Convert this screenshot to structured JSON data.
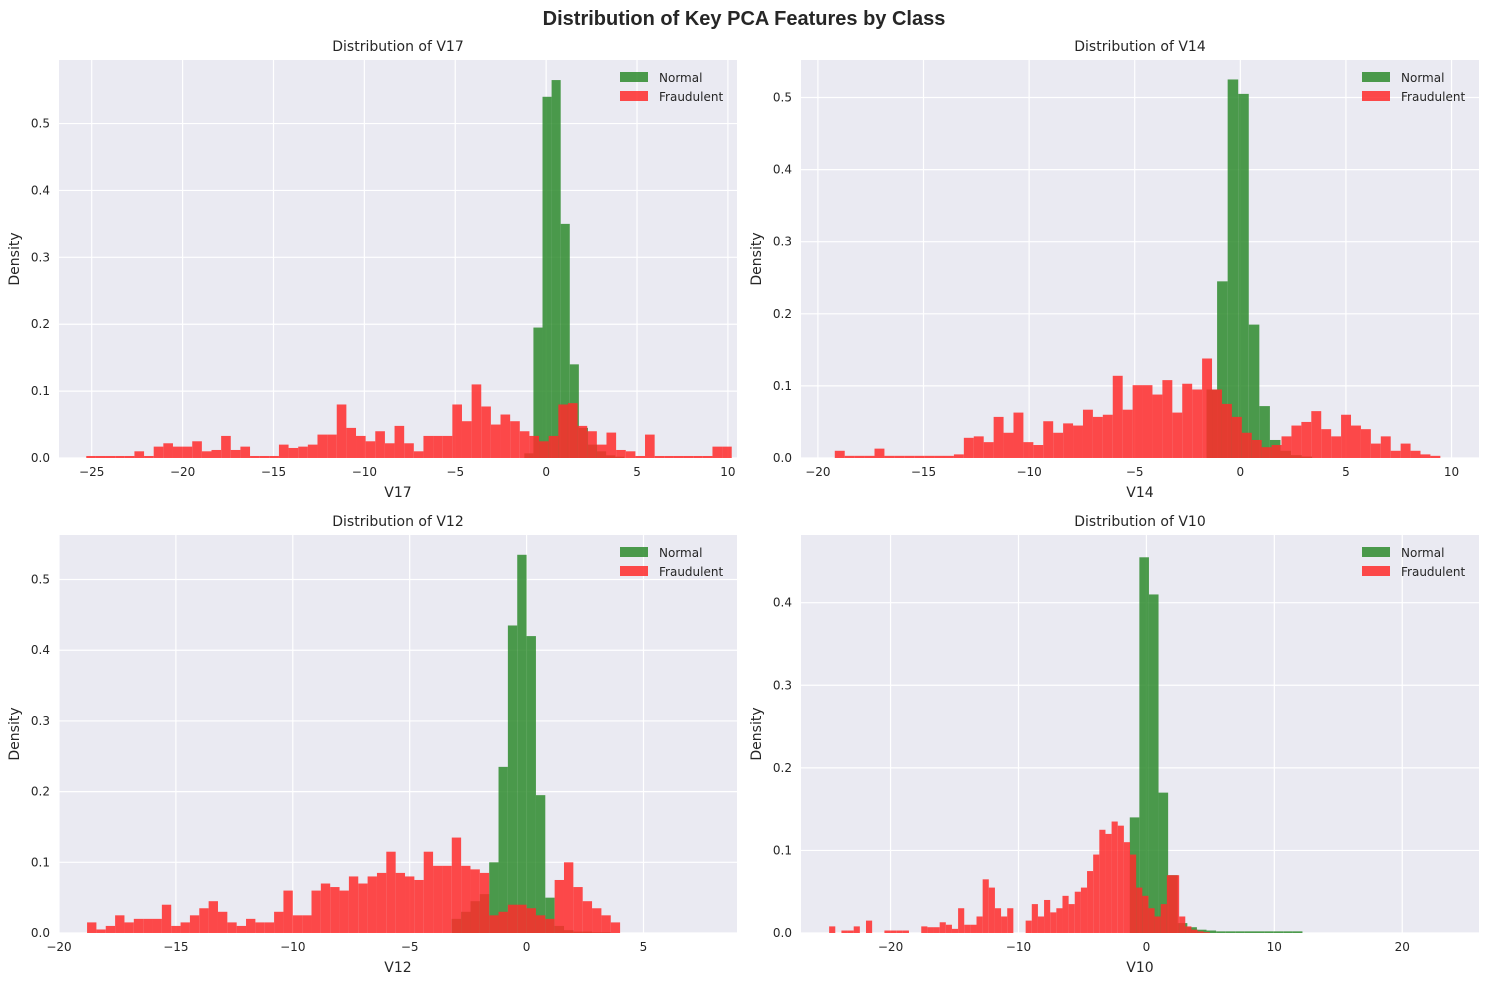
{
  "figure": {
    "title": "Distribution of Key PCA Features by Class"
  },
  "colors": {
    "normal": "#2e8b2e",
    "fraud": "#ff2b2b",
    "panel_bg": "#eaeaf2",
    "grid": "#ffffff"
  },
  "legend_position": "upper right",
  "chart_data": [
    {
      "type": "histogram",
      "title": "Distribution of V17",
      "xlabel": "V17",
      "ylabel": "Density",
      "xlim": [
        -26.8,
        10.5
      ],
      "ylim": [
        0,
        0.595
      ],
      "xticks": [
        -25,
        -20,
        -15,
        -10,
        -5,
        0,
        5,
        10
      ],
      "yticks": [
        0.0,
        0.1,
        0.2,
        0.3,
        0.4,
        0.5
      ],
      "grid": true,
      "series": [
        {
          "name": "Normal",
          "bin_start": -1.2,
          "bin_width": 0.5,
          "values": [
            0.007,
            0.195,
            0.54,
            0.565,
            0.35,
            0.14,
            0.045,
            0.02,
            0.01,
            0.004,
            0.002
          ]
        },
        {
          "name": "Fraudulent",
          "bin_start": -25.3,
          "bin_width": 0.53,
          "values": [
            0.003,
            0.003,
            0.003,
            0.003,
            0.003,
            0.01,
            0.003,
            0.017,
            0.022,
            0.017,
            0.017,
            0.025,
            0.01,
            0.012,
            0.033,
            0.012,
            0.017,
            0.003,
            0.003,
            0.003,
            0.02,
            0.015,
            0.017,
            0.02,
            0.035,
            0.035,
            0.08,
            0.045,
            0.033,
            0.025,
            0.04,
            0.022,
            0.048,
            0.022,
            0.01,
            0.033,
            0.033,
            0.033,
            0.08,
            0.055,
            0.11,
            0.077,
            0.05,
            0.065,
            0.055,
            0.04,
            0.033,
            0.025,
            0.033,
            0.08,
            0.082,
            0.048,
            0.04,
            0.02,
            0.038,
            0.012,
            0.01,
            0.003,
            0.035,
            0.003,
            0.003,
            0.003,
            0.003,
            0.003,
            0.003,
            0.017,
            0.017
          ]
        }
      ]
    },
    {
      "type": "histogram",
      "title": "Distribution of V14",
      "xlabel": "V14",
      "ylabel": "Density",
      "xlim": [
        -20.8,
        11.3
      ],
      "ylim": [
        0,
        0.552
      ],
      "xticks": [
        -20,
        -15,
        -10,
        -5,
        0,
        5,
        10
      ],
      "yticks": [
        0.0,
        0.1,
        0.2,
        0.3,
        0.4,
        0.5
      ],
      "grid": true,
      "series": [
        {
          "name": "Normal",
          "bin_start": -1.6,
          "bin_width": 0.5,
          "values": [
            0.095,
            0.245,
            0.525,
            0.505,
            0.185,
            0.072,
            0.025,
            0.01,
            0.004,
            0.002
          ]
        },
        {
          "name": "Fraudulent",
          "bin_start": -19.2,
          "bin_width": 0.47,
          "values": [
            0.01,
            0.003,
            0.003,
            0.003,
            0.013,
            0.003,
            0.003,
            0.003,
            0.003,
            0.003,
            0.003,
            0.003,
            0.005,
            0.028,
            0.03,
            0.022,
            0.057,
            0.035,
            0.063,
            0.022,
            0.018,
            0.051,
            0.035,
            0.048,
            0.045,
            0.067,
            0.057,
            0.06,
            0.114,
            0.067,
            0.101,
            0.101,
            0.088,
            0.108,
            0.063,
            0.103,
            0.095,
            0.138,
            0.095,
            0.075,
            0.057,
            0.035,
            0.025,
            0.015,
            0.018,
            0.03,
            0.045,
            0.05,
            0.065,
            0.04,
            0.03,
            0.06,
            0.045,
            0.04,
            0.02,
            0.03,
            0.01,
            0.02,
            0.01,
            0.005,
            0.003
          ]
        }
      ]
    },
    {
      "type": "histogram",
      "title": "Distribution of V12",
      "xlabel": "V12",
      "ylabel": "Density",
      "xlim": [
        -20,
        9
      ],
      "ylim": [
        0,
        0.563
      ],
      "xticks": [
        -20,
        -15,
        -10,
        -5,
        0,
        5
      ],
      "yticks": [
        0.0,
        0.1,
        0.2,
        0.3,
        0.4,
        0.5
      ],
      "grid": true,
      "series": [
        {
          "name": "Normal",
          "bin_start": -3.2,
          "bin_width": 0.4,
          "values": [
            0.02,
            0.03,
            0.045,
            0.055,
            0.1,
            0.235,
            0.435,
            0.535,
            0.42,
            0.195,
            0.05,
            0.01,
            0.004,
            0.002,
            0.002,
            0.001,
            0.001
          ]
        },
        {
          "name": "Fraudulent",
          "bin_start": -18.8,
          "bin_width": 0.4,
          "values": [
            0.015,
            0.005,
            0.01,
            0.025,
            0.015,
            0.02,
            0.02,
            0.02,
            0.04,
            0.01,
            0.015,
            0.025,
            0.035,
            0.045,
            0.03,
            0.015,
            0.01,
            0.02,
            0.015,
            0.015,
            0.03,
            0.06,
            0.025,
            0.025,
            0.06,
            0.07,
            0.065,
            0.06,
            0.08,
            0.07,
            0.08,
            0.085,
            0.115,
            0.085,
            0.08,
            0.075,
            0.115,
            0.095,
            0.095,
            0.135,
            0.095,
            0.09,
            0.085,
            0.025,
            0.03,
            0.04,
            0.04,
            0.035,
            0.025,
            0.02,
            0.075,
            0.1,
            0.065,
            0.045,
            0.035,
            0.025,
            0.015
          ]
        }
      ]
    },
    {
      "type": "histogram",
      "title": "Distribution of V10",
      "xlabel": "V10",
      "ylabel": "Density",
      "xlim": [
        -27,
        26
      ],
      "ylim": [
        0,
        0.482
      ],
      "xticks": [
        -20,
        -10,
        0,
        10,
        20
      ],
      "yticks": [
        0.0,
        0.1,
        0.2,
        0.3,
        0.4
      ],
      "grid": true,
      "series": [
        {
          "name": "Normal",
          "bin_start": -1.3,
          "bin_width": 0.75,
          "values": [
            0.14,
            0.455,
            0.41,
            0.17,
            0.07,
            0.012,
            0.007,
            0.004,
            0.003,
            0.002,
            0.002,
            0.002,
            0.002,
            0.002,
            0.002,
            0.002,
            0.002,
            0.002
          ]
        },
        {
          "name": "Fraudulent",
          "bin_start": -24.8,
          "bin_width": 0.48,
          "values": [
            0.008,
            0.0,
            0.003,
            0.003,
            0.008,
            0.0,
            0.015,
            0.0,
            0.0,
            0.003,
            0.003,
            0.003,
            0.003,
            0.0,
            0.0,
            0.008,
            0.007,
            0.007,
            0.013,
            0.01,
            0.005,
            0.03,
            0.01,
            0.01,
            0.02,
            0.065,
            0.055,
            0.03,
            0.02,
            0.03,
            0.0,
            0.0,
            0.015,
            0.035,
            0.02,
            0.04,
            0.025,
            0.03,
            0.045,
            0.035,
            0.05,
            0.055,
            0.075,
            0.095,
            0.125,
            0.12,
            0.135,
            0.13,
            0.11,
            0.095,
            0.055,
            0.045,
            0.03,
            0.02,
            0.035,
            0.07,
            0.07,
            0.02,
            0.008,
            0.004,
            0.002,
            0.001
          ]
        }
      ]
    }
  ]
}
